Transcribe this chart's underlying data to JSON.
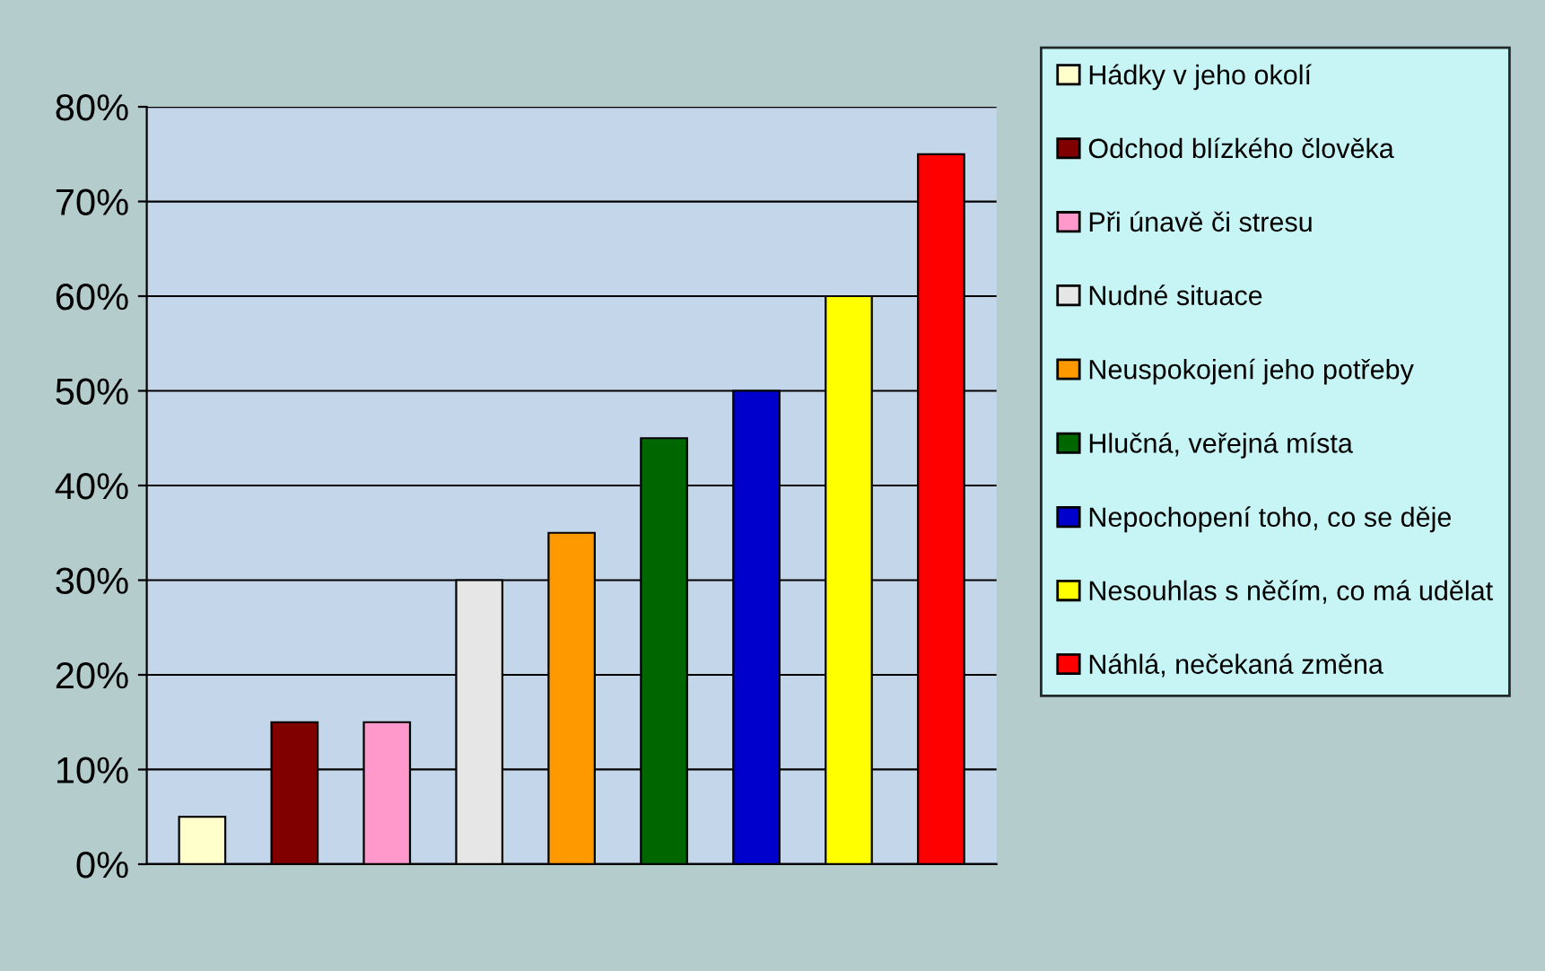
{
  "chart_data": {
    "type": "bar",
    "categories": [
      null,
      null,
      null,
      null,
      null,
      null,
      null,
      null,
      null
    ],
    "series": [
      {
        "name": "Hádky v jeho okolí",
        "color": "#ffffcc",
        "values": [
          5,
          null,
          null,
          null,
          null,
          null,
          null,
          null,
          null
        ]
      },
      {
        "name": "Odchod blízkého člověka",
        "color": "#800000",
        "values": [
          null,
          15,
          null,
          null,
          null,
          null,
          null,
          null,
          null
        ]
      },
      {
        "name": "Při únavě či stresu",
        "color": "#ff99cc",
        "values": [
          null,
          null,
          15,
          null,
          null,
          null,
          null,
          null,
          null
        ]
      },
      {
        "name": "Nudné situace",
        "color": "#e6e6e6",
        "values": [
          null,
          null,
          null,
          30,
          null,
          null,
          null,
          null,
          null
        ]
      },
      {
        "name": "Neuspokojení jeho potřeby",
        "color": "#ff9900",
        "values": [
          null,
          null,
          null,
          null,
          35,
          null,
          null,
          null,
          null
        ]
      },
      {
        "name": "Hlučná, veřejná místa",
        "color": "#006600",
        "values": [
          null,
          null,
          null,
          null,
          null,
          45,
          null,
          null,
          null
        ]
      },
      {
        "name": "Nepochopení toho, co se děje",
        "color": "#0000cc",
        "values": [
          null,
          null,
          null,
          null,
          null,
          null,
          50,
          null,
          null
        ]
      },
      {
        "name": "Nesouhlas s něčím, co má udělat",
        "color": "#ffff00",
        "values": [
          null,
          null,
          null,
          null,
          null,
          null,
          null,
          60,
          null
        ]
      },
      {
        "name": "Náhlá, nečekaná změna",
        "color": "#ff0000",
        "values": [
          null,
          null,
          null,
          null,
          null,
          null,
          null,
          null,
          75
        ]
      }
    ],
    "ylim": [
      0,
      80
    ],
    "yticks": [
      {
        "value": 0,
        "label": "0%"
      },
      {
        "value": 10,
        "label": "10%"
      },
      {
        "value": 20,
        "label": "20%"
      },
      {
        "value": 30,
        "label": "30%"
      },
      {
        "value": 40,
        "label": "40%"
      },
      {
        "value": 50,
        "label": "50%"
      },
      {
        "value": 60,
        "label": "60%"
      },
      {
        "value": 70,
        "label": "70%"
      },
      {
        "value": 80,
        "label": "80%"
      }
    ],
    "grid": "y",
    "legend": "right"
  }
}
